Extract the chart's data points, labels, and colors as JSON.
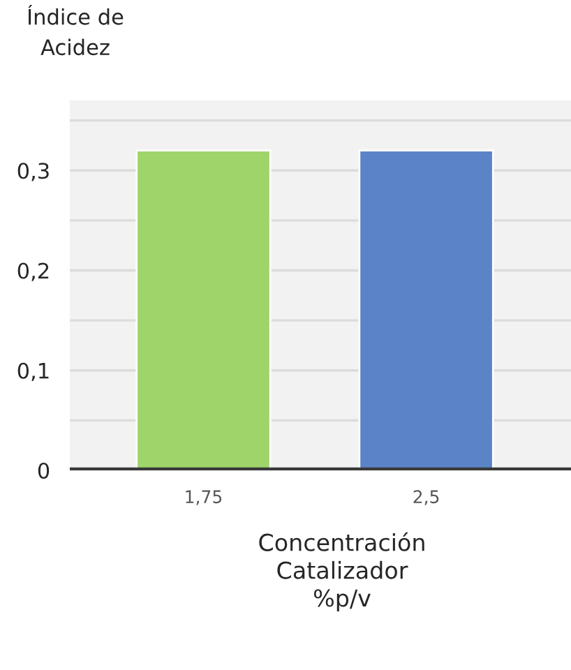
{
  "chart_data": {
    "type": "bar",
    "ylabel": "Índice de\nAcidez",
    "xlabel": "Concentración\nCatalizador\n%p/v",
    "categories": [
      "1,75",
      "2,5"
    ],
    "values": [
      0.32,
      0.32
    ],
    "colors": [
      "#9fd46a",
      "#5b84c8"
    ],
    "ylim": [
      0,
      0.37
    ],
    "yticks": [
      {
        "value": 0,
        "label": "0"
      },
      {
        "value": 0.05,
        "label": null
      },
      {
        "value": 0.1,
        "label": "0,1"
      },
      {
        "value": 0.15,
        "label": null
      },
      {
        "value": 0.2,
        "label": "0,2"
      },
      {
        "value": 0.25,
        "label": null
      },
      {
        "value": 0.3,
        "label": "0,3"
      },
      {
        "value": 0.35,
        "label": null
      }
    ],
    "grid": "y"
  }
}
